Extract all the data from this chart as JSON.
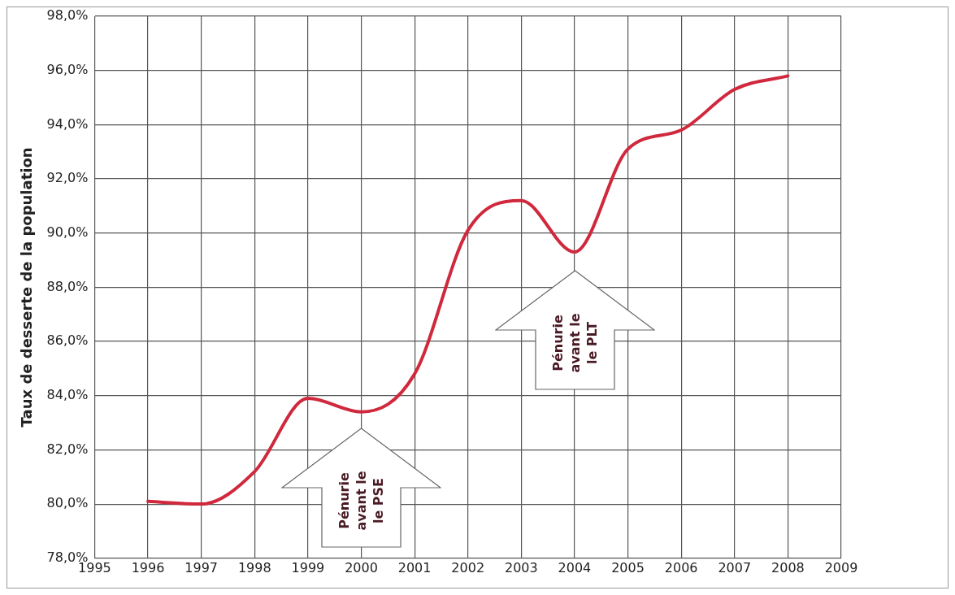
{
  "chart_data": {
    "type": "line",
    "ylabel": "Taux de desserte de la population",
    "x": [
      1996,
      1997,
      1998,
      1999,
      2000,
      2001,
      2002,
      2003,
      2004,
      2005,
      2006,
      2007,
      2008
    ],
    "series": [
      {
        "color": "#d0283c",
        "values": [
          80.1,
          80.0,
          81.2,
          83.9,
          83.4,
          84.8,
          90.1,
          91.2,
          89.3,
          93.1,
          93.8,
          95.3,
          95.8
        ]
      }
    ],
    "xlim": [
      1995,
      2009
    ],
    "xticks": [
      1995,
      1996,
      1997,
      1998,
      1999,
      2000,
      2001,
      2002,
      2003,
      2004,
      2005,
      2006,
      2007,
      2008,
      2009
    ],
    "ylim": [
      78,
      98
    ],
    "yticks": [
      {
        "value": 78,
        "label": "78,0%"
      },
      {
        "value": 80,
        "label": "80,0%"
      },
      {
        "value": 82,
        "label": "82,0%"
      },
      {
        "value": 84,
        "label": "84,0%"
      },
      {
        "value": 86,
        "label": "86,0%"
      },
      {
        "value": 88,
        "label": "88,0%"
      },
      {
        "value": 90,
        "label": "90,0%"
      },
      {
        "value": 92,
        "label": "92,0%"
      },
      {
        "value": 94,
        "label": "94,0%"
      },
      {
        "value": 96,
        "label": "96,0%"
      },
      {
        "value": 98,
        "label": "98,0%"
      }
    ],
    "annotations": [
      "Pénurie\navant le\nle PSE",
      "Pénurie\navant le\nle PLT"
    ],
    "grid": true,
    "legend": false,
    "marker": "none",
    "line_style": "solid"
  }
}
